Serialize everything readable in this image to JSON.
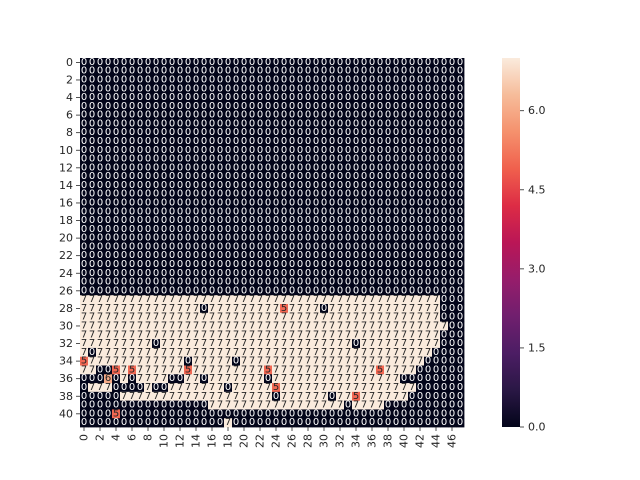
{
  "chart_data": {
    "type": "heatmap",
    "title": "",
    "xlabel": "",
    "ylabel": "",
    "n_cols": 48,
    "n_rows": 42,
    "annotated": true,
    "x_tick_labels": [
      "0",
      "2",
      "4",
      "6",
      "8",
      "10",
      "12",
      "14",
      "16",
      "18",
      "20",
      "22",
      "24",
      "26",
      "28",
      "30",
      "32",
      "34",
      "36",
      "38",
      "40",
      "42",
      "44",
      "46"
    ],
    "y_tick_labels": [
      "0",
      "2",
      "4",
      "6",
      "8",
      "10",
      "12",
      "14",
      "16",
      "18",
      "20",
      "22",
      "24",
      "26",
      "28",
      "30",
      "32",
      "34",
      "36",
      "38",
      "40"
    ],
    "colorbar": {
      "vmin": 0.0,
      "vmax": 7.0,
      "tick_labels": [
        "0.0",
        "1.5",
        "3.0",
        "4.5",
        "6.0"
      ],
      "tick_values": [
        0.0,
        1.5,
        3.0,
        4.5,
        6.0
      ],
      "colormap": "rocket"
    },
    "rows": [
      "000000000000000000000000000000000000000000000000",
      "000000000000000000000000000000000000000000000000",
      "000000000000000000000000000000000000000000000000",
      "000000000000000000000000000000000000000000000000",
      "000000000000000000000000000000000000000000000000",
      "000000000000000000000000000000000000000000000000",
      "000000000000000000000000000000000000000000000000",
      "000000000000000000000000000000000000000000000000",
      "000000000000000000000000000000000000000000000000",
      "000000000000000000000000000000000000000000000000",
      "000000000000000000000000000000000000000000000000",
      "000000000000000000000000000000000000000000000000",
      "000000000000000000000000000000000000000000000000",
      "000000000000000000000000000000000000000000000000",
      "000000000000000000000000000000000000000000000000",
      "000000000000000000000000000000000000000000000000",
      "000000000000000000000000000000000000000000000000",
      "000000000000000000000000000000000000000000000000",
      "000000000000000000000000000000000000000000000000",
      "000000000000000000000000000000000000000000000000",
      "000000000000000000000000000000000000000000000000",
      "000000000000000000000000000000000000000000000000",
      "000000000000000000000000000000000000000000000000",
      "000000000000000000000000000000000000000000000000",
      "000000000000000000000000000000000000000000000000",
      "000000000000000000000000000000000000000000000000",
      "000000000000000000000000000000000000000000000000",
      "777777777777777777777777777777777777777777777000",
      "777777777777777077777777757777077777777777777000",
      "777777777777777777777777777777777777777777777000",
      "777777777777777777777777777777777777777777777700",
      "777777777777777777777777777777777777777777777000",
      "777777777077777777777777777777777707777777777000",
      "707777777777777777777777777777777777777777770000",
      "577777777777707777707777777777777777777777700000",
      "770057577777757777777775777777777777757777000000",
      "000607077770077077777770777777777777777700000000",
      "077700007007777777077777577777777777777777000000",
      "000007777777777777777777077777707757777770000000",
      "000000000000000077777777777777777077770000000000",
      "000050000000000000000000000000000000000000000000",
      "000000000000000000700000000000000000000000000000"
    ]
  }
}
